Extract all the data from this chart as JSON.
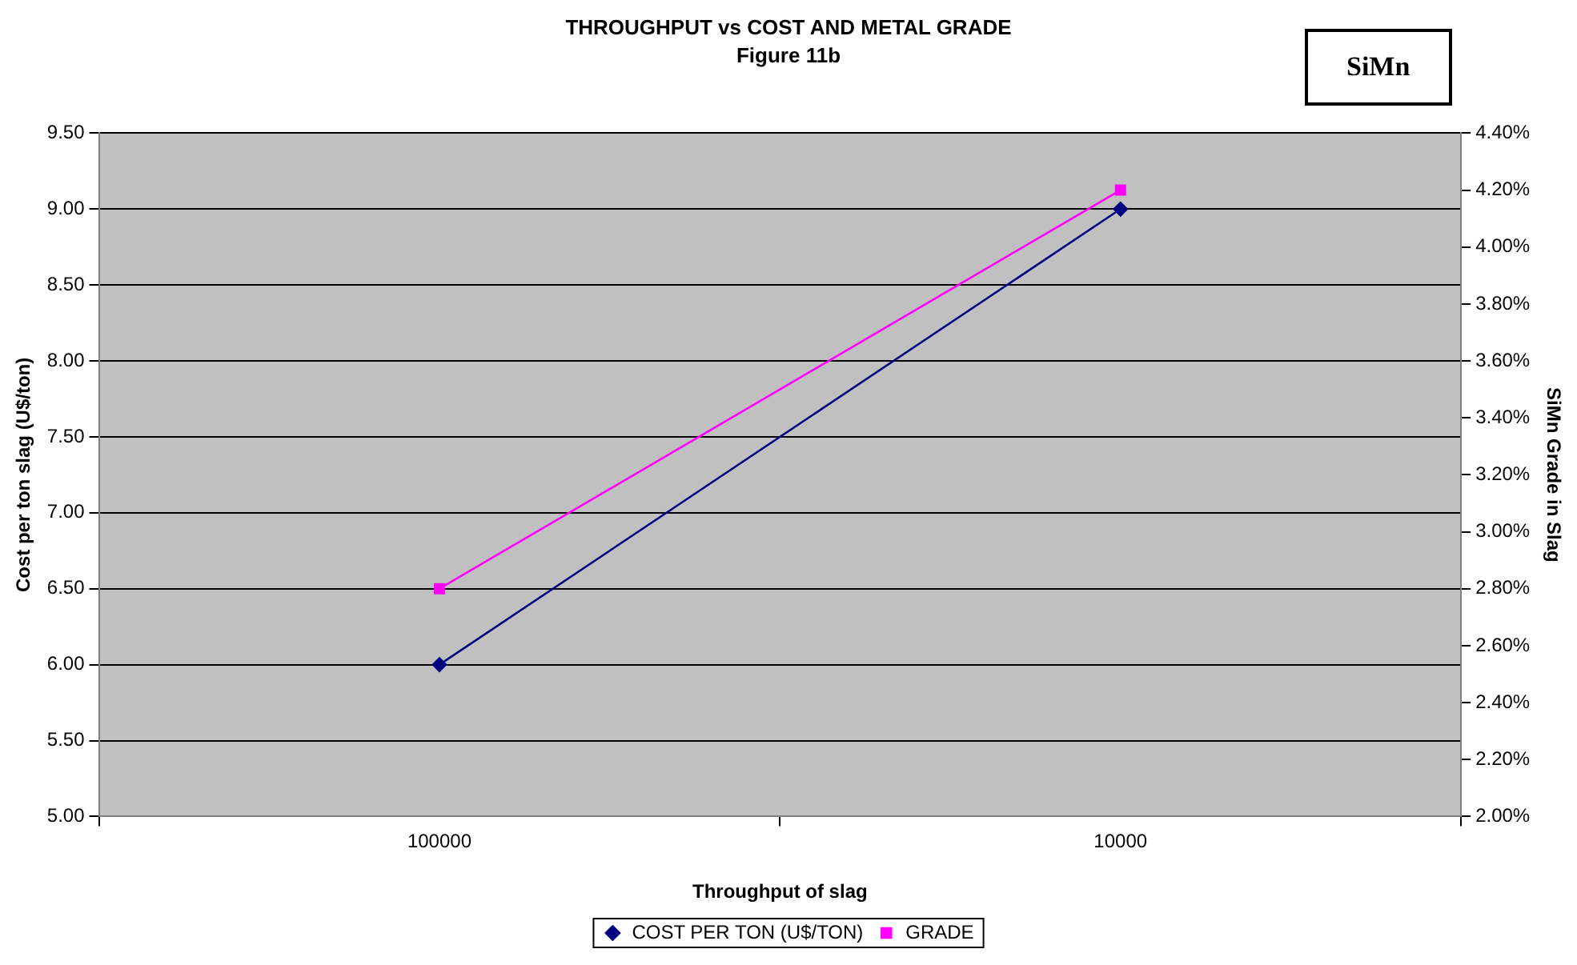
{
  "chart_data": {
    "type": "line",
    "title": "THROUGHPUT vs COST AND METAL GRADE",
    "subtitle": "Figure 11b",
    "annotations": [
      "SiMn"
    ],
    "xlabel": "Throughput of slag",
    "ylabel": "Cost per ton slag (U$/ton)",
    "y2label": "SiMn Grade in Slag",
    "categories": [
      "100000",
      "10000"
    ],
    "series": [
      {
        "name": "COST PER TON (U$/TON)",
        "color": "#000080",
        "marker": "diamond",
        "values": [
          6.0,
          9.0
        ]
      },
      {
        "name": "GRADE",
        "color": "#ff00ff",
        "marker": "square",
        "axis": "y2",
        "values": [
          2.8,
          4.2
        ]
      }
    ],
    "ylim": [
      5,
      9.5
    ],
    "yticks": [
      {
        "value": 5,
        "label": "5.00"
      },
      {
        "value": 5.5,
        "label": "5.50"
      },
      {
        "value": 6,
        "label": "6.00"
      },
      {
        "value": 6.5,
        "label": "6.50"
      },
      {
        "value": 7,
        "label": "7.00"
      },
      {
        "value": 7.5,
        "label": "7.50"
      },
      {
        "value": 8,
        "label": "8.00"
      },
      {
        "value": 8.5,
        "label": "8.50"
      },
      {
        "value": 9,
        "label": "9.00"
      },
      {
        "value": 9.5,
        "label": "9.50"
      }
    ],
    "y2lim": [
      2,
      4.4
    ],
    "y2ticks": [
      {
        "value": 2,
        "label": "2.00%"
      },
      {
        "value": 2.2,
        "label": "2.20%"
      },
      {
        "value": 2.4,
        "label": "2.40%"
      },
      {
        "value": 2.6,
        "label": "2.60%"
      },
      {
        "value": 2.8,
        "label": "2.80%"
      },
      {
        "value": 3,
        "label": "3.00%"
      },
      {
        "value": 3.2,
        "label": "3.20%"
      },
      {
        "value": 3.4,
        "label": "3.40%"
      },
      {
        "value": 3.6,
        "label": "3.60%"
      },
      {
        "value": 3.8,
        "label": "3.80%"
      },
      {
        "value": 4,
        "label": "4.00%"
      },
      {
        "value": 4.2,
        "label": "4.20%"
      },
      {
        "value": 4.4,
        "label": "4.40%"
      }
    ],
    "grid": "y",
    "legend": "bottom",
    "line_style": "solid"
  }
}
